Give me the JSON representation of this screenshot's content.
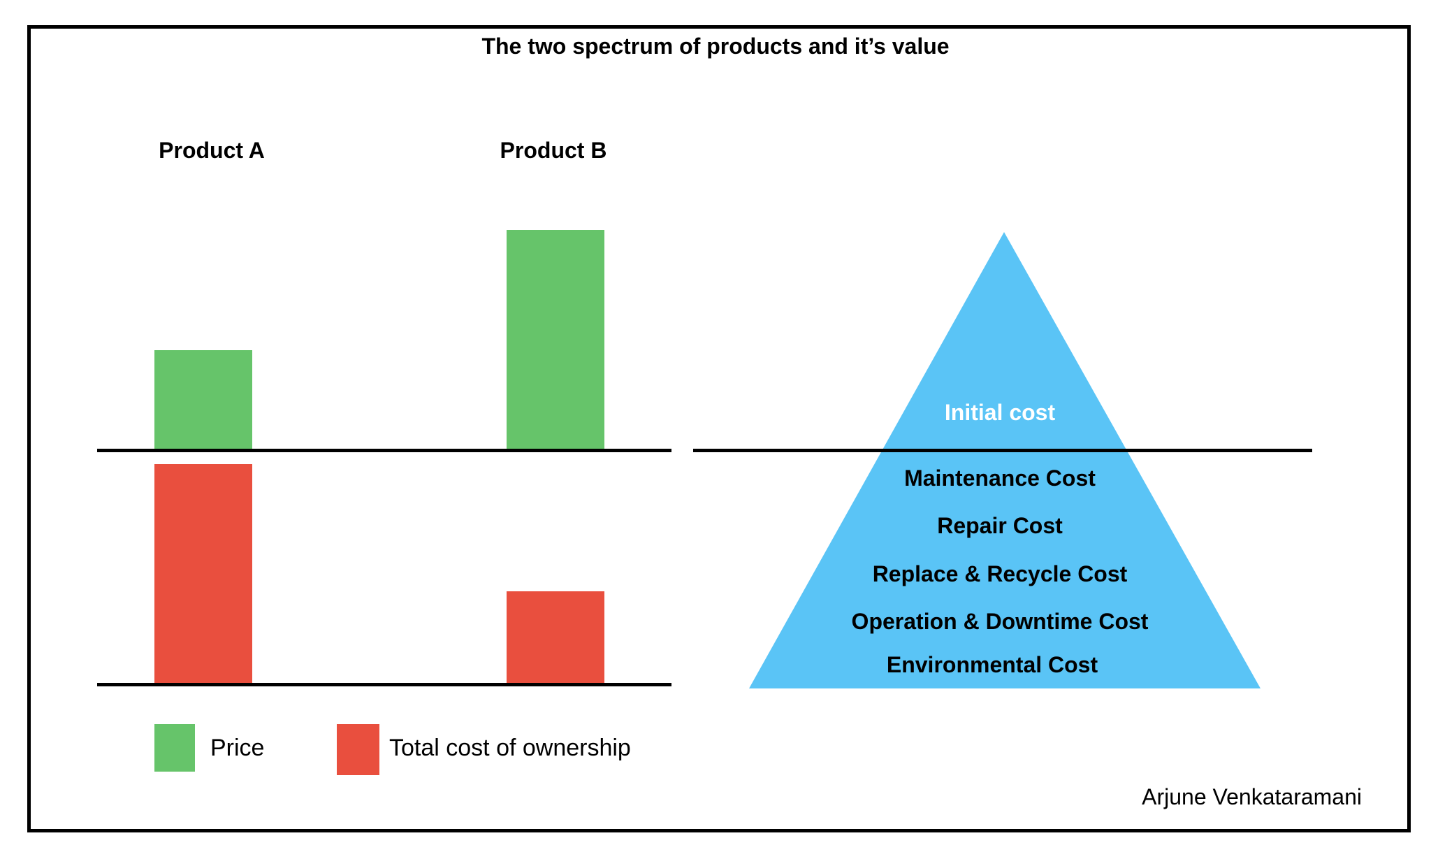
{
  "title": "The two spectrum of products and it’s value",
  "colors": {
    "price": "#66c46a",
    "tco": "#e94f3e",
    "pyramid": "#5ac4f6",
    "initial_label": "#ffffff"
  },
  "chart_data": {
    "type": "bar",
    "categories": [
      "Product A",
      "Product B"
    ],
    "series": [
      {
        "name": "Price",
        "values": [
          1.4,
          3.1
        ]
      },
      {
        "name": "Total cost of ownership",
        "values": [
          3.1,
          1.3
        ]
      }
    ],
    "title": "",
    "xlabel": "",
    "ylabel": ""
  },
  "legend": {
    "price_label": "Price",
    "tco_label": "Total cost of ownership"
  },
  "pyramid": {
    "top_label": "Initial cost",
    "bottom_labels": [
      "Maintenance Cost",
      "Repair Cost",
      "Replace & Recycle Cost",
      "Operation & Downtime Cost",
      "Environmental Cost"
    ]
  },
  "author": "Arjune Venkataramani"
}
